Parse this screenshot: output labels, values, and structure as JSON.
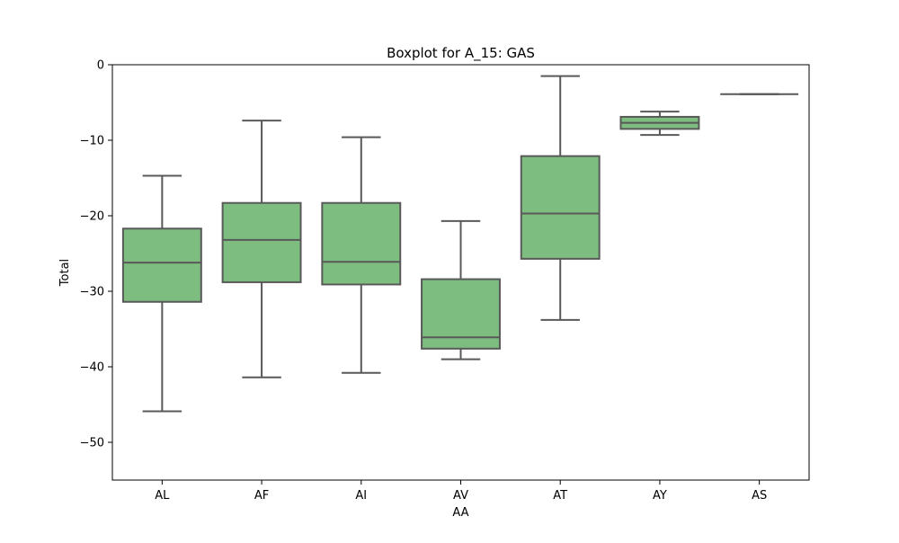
{
  "chart_data": {
    "type": "box",
    "title": "Boxplot for A_15: GAS",
    "xlabel": "AA",
    "ylabel": "Total",
    "ylim": [
      -55,
      0
    ],
    "yticks": [
      0,
      -10,
      -20,
      -30,
      -40,
      -50
    ],
    "ytick_labels": [
      "0",
      "−10",
      "−20",
      "−30",
      "−40",
      "−50"
    ],
    "categories": [
      "AL",
      "AF",
      "AI",
      "AV",
      "AT",
      "AY",
      "AS"
    ],
    "boxes": [
      {
        "category": "AL",
        "whisker_low": -45.9,
        "q1": -31.4,
        "median": -26.2,
        "q3": -21.7,
        "whisker_high": -14.7
      },
      {
        "category": "AF",
        "whisker_low": -41.4,
        "q1": -28.8,
        "median": -23.2,
        "q3": -18.3,
        "whisker_high": -7.4
      },
      {
        "category": "AI",
        "whisker_low": -40.8,
        "q1": -29.1,
        "median": -26.1,
        "q3": -18.3,
        "whisker_high": -9.6
      },
      {
        "category": "AV",
        "whisker_low": -39.0,
        "q1": -37.6,
        "median": -36.1,
        "q3": -28.4,
        "whisker_high": -20.7
      },
      {
        "category": "AT",
        "whisker_low": -33.8,
        "q1": -25.7,
        "median": -19.7,
        "q3": -12.1,
        "whisker_high": -1.5
      },
      {
        "category": "AY",
        "whisker_low": -9.3,
        "q1": -8.5,
        "median": -7.7,
        "q3": -6.9,
        "whisker_high": -6.2
      },
      {
        "category": "AS",
        "whisker_low": -3.9,
        "q1": -3.9,
        "median": -3.9,
        "q3": -3.9,
        "whisker_high": -3.9
      }
    ],
    "box_color": "#7dbd80",
    "line_color": "#595959",
    "grid": false
  }
}
